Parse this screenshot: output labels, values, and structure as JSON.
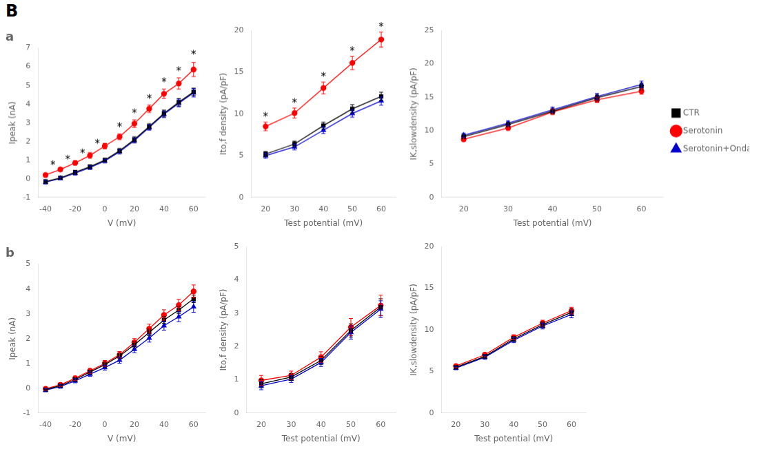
{
  "title": "B",
  "chart_data": [
    {
      "type": "line",
      "title": "a",
      "xlabel": "V (mV)",
      "ylabel": "Ipeak (nA)",
      "x": [
        -40,
        -30,
        -20,
        -10,
        0,
        10,
        20,
        30,
        40,
        50,
        60
      ],
      "series": [
        {
          "name": "CTR",
          "color": "#000000",
          "marker": "square",
          "values": [
            -0.15,
            0.05,
            0.35,
            0.65,
            1.0,
            1.5,
            2.1,
            2.8,
            3.5,
            4.1,
            4.65
          ],
          "errors": [
            0.1,
            0.08,
            0.1,
            0.1,
            0.1,
            0.12,
            0.15,
            0.15,
            0.18,
            0.2,
            0.2
          ]
        },
        {
          "name": "Serotonin",
          "color": "#ff0000",
          "marker": "circle",
          "values": [
            0.2,
            0.5,
            0.85,
            1.25,
            1.75,
            2.25,
            2.95,
            3.75,
            4.55,
            5.1,
            5.85
          ],
          "errors": [
            0.1,
            0.1,
            0.12,
            0.15,
            0.15,
            0.15,
            0.2,
            0.2,
            0.25,
            0.3,
            0.38
          ]
        },
        {
          "name": "Serotonin+Ondansetron",
          "color": "#0000cc",
          "marker": "triangle",
          "values": [
            -0.18,
            0.02,
            0.3,
            0.6,
            0.95,
            1.45,
            2.05,
            2.75,
            3.45,
            4.05,
            4.6
          ],
          "errors": [
            0.1,
            0.08,
            0.1,
            0.1,
            0.1,
            0.12,
            0.13,
            0.15,
            0.17,
            0.2,
            0.22
          ]
        }
      ],
      "xlim": [
        -45,
        68
      ],
      "ylim": [
        -1,
        7
      ],
      "xticks": [
        -40,
        -20,
        0,
        20,
        40,
        60
      ],
      "yticks": [
        -1,
        0,
        1,
        2,
        3,
        4,
        5,
        6,
        7
      ],
      "grid": false,
      "annotations": [
        {
          "text": "*",
          "x": -35,
          "y": 0.55
        },
        {
          "text": "*",
          "x": -25,
          "y": 0.85
        },
        {
          "text": "*",
          "x": -15,
          "y": 1.2
        },
        {
          "text": "*",
          "x": -5,
          "y": 1.7
        },
        {
          "text": "*",
          "x": 10,
          "y": 2.6
        },
        {
          "text": "*",
          "x": 20,
          "y": 3.35
        },
        {
          "text": "*",
          "x": 30,
          "y": 4.1
        },
        {
          "text": "*",
          "x": 40,
          "y": 5.0
        },
        {
          "text": "*",
          "x": 50,
          "y": 5.6
        },
        {
          "text": "*",
          "x": 60,
          "y": 6.5
        }
      ]
    },
    {
      "type": "line",
      "xlabel": "Test potential (mV)",
      "ylabel": "Ito,f density (pA/pF)",
      "x": [
        20,
        30,
        40,
        50,
        60
      ],
      "series": [
        {
          "name": "CTR",
          "color": "#000000",
          "marker": "square",
          "values": [
            5.2,
            6.4,
            8.6,
            10.6,
            12.1
          ],
          "errors": [
            0.3,
            0.35,
            0.4,
            0.5,
            0.5
          ]
        },
        {
          "name": "Serotonin",
          "color": "#ff0000",
          "marker": "circle",
          "values": [
            8.5,
            10.1,
            13.1,
            16.1,
            18.9
          ],
          "errors": [
            0.5,
            0.6,
            0.7,
            0.8,
            0.9
          ]
        },
        {
          "name": "Serotonin+Ondansetron",
          "color": "#0000cc",
          "marker": "triangle",
          "values": [
            5.0,
            6.05,
            8.05,
            10.05,
            11.55
          ],
          "errors": [
            0.3,
            0.35,
            0.4,
            0.45,
            0.5
          ]
        }
      ],
      "xlim": [
        15,
        65
      ],
      "ylim": [
        0,
        20
      ],
      "xticks": [
        20,
        30,
        40,
        50,
        60
      ],
      "yticks": [
        0,
        5,
        10,
        15,
        20
      ],
      "grid": false,
      "annotations": [
        {
          "text": "*",
          "x": 20,
          "y": 9.3
        },
        {
          "text": "*",
          "x": 30,
          "y": 10.95
        },
        {
          "text": "*",
          "x": 40,
          "y": 14.05
        },
        {
          "text": "*",
          "x": 50,
          "y": 17.15
        },
        {
          "text": "*",
          "x": 60,
          "y": 20.05
        }
      ]
    },
    {
      "type": "line",
      "xlabel": "Test potential (mV)",
      "ylabel": "IK,slowdensity (pA/pF)",
      "x": [
        20,
        30,
        40,
        50,
        60
      ],
      "series": [
        {
          "name": "CTR",
          "color": "#000000",
          "marker": "square",
          "values": [
            9.1,
            10.9,
            12.9,
            14.9,
            16.6
          ],
          "errors": [
            0.3,
            0.35,
            0.4,
            0.45,
            0.5
          ]
        },
        {
          "name": "Serotonin",
          "color": "#ff0000",
          "marker": "circle",
          "values": [
            8.7,
            10.4,
            12.8,
            14.6,
            15.9
          ],
          "errors": [
            0.3,
            0.35,
            0.4,
            0.4,
            0.45
          ]
        },
        {
          "name": "Serotonin+Ondansetron",
          "color": "#0000cc",
          "marker": "triangle",
          "values": [
            9.3,
            11.1,
            13.1,
            15.1,
            16.9
          ],
          "errors": [
            0.3,
            0.35,
            0.4,
            0.45,
            0.5
          ]
        }
      ],
      "xlim": [
        15,
        65
      ],
      "ylim": [
        0,
        25
      ],
      "xticks": [
        20,
        30,
        40,
        50,
        60
      ],
      "yticks": [
        0,
        5,
        10,
        15,
        20,
        25
      ],
      "grid": false,
      "legend": "right"
    },
    {
      "type": "line",
      "title": "b",
      "xlabel": "V (mV)",
      "ylabel": "Ipeak (nA)",
      "x": [
        -40,
        -30,
        -20,
        -10,
        0,
        10,
        20,
        30,
        40,
        50,
        60
      ],
      "series": [
        {
          "name": "CTR",
          "color": "#000000",
          "marker": "square",
          "values": [
            -0.05,
            0.1,
            0.35,
            0.65,
            0.95,
            1.3,
            1.75,
            2.25,
            2.75,
            3.15,
            3.6
          ],
          "errors": [
            0.05,
            0.06,
            0.07,
            0.08,
            0.1,
            0.1,
            0.12,
            0.13,
            0.14,
            0.15,
            0.15
          ]
        },
        {
          "name": "Serotonin",
          "color": "#ff0000",
          "marker": "circle",
          "values": [
            -0.02,
            0.14,
            0.4,
            0.7,
            1.0,
            1.35,
            1.85,
            2.4,
            2.95,
            3.35,
            3.9
          ],
          "errors": [
            0.06,
            0.07,
            0.09,
            0.1,
            0.12,
            0.13,
            0.15,
            0.18,
            0.21,
            0.23,
            0.26
          ]
        },
        {
          "name": "Serotonin+Ondansetron",
          "color": "#0000cc",
          "marker": "triangle",
          "values": [
            -0.08,
            0.07,
            0.3,
            0.57,
            0.83,
            1.13,
            1.57,
            2.02,
            2.52,
            2.88,
            3.28
          ],
          "errors": [
            0.06,
            0.07,
            0.08,
            0.09,
            0.1,
            0.12,
            0.14,
            0.16,
            0.18,
            0.2,
            0.22
          ]
        }
      ],
      "xlim": [
        -45,
        68
      ],
      "ylim": [
        -1,
        5
      ],
      "xticks": [
        -40,
        -20,
        0,
        20,
        40,
        60
      ],
      "yticks": [
        -1,
        0,
        1,
        2,
        3,
        4,
        5
      ],
      "grid": false
    },
    {
      "type": "line",
      "xlabel": "Test potential (mV)",
      "ylabel": "Ito,f density (pA/pF)",
      "x": [
        20,
        30,
        40,
        50,
        60
      ],
      "series": [
        {
          "name": "CTR",
          "color": "#000000",
          "marker": "square",
          "values": [
            0.88,
            1.08,
            1.58,
            2.48,
            3.18
          ],
          "errors": [
            0.12,
            0.1,
            0.12,
            0.2,
            0.25
          ]
        },
        {
          "name": "Serotonin",
          "color": "#ff0000",
          "marker": "circle",
          "values": [
            0.98,
            1.13,
            1.68,
            2.58,
            3.23
          ],
          "errors": [
            0.15,
            0.13,
            0.16,
            0.26,
            0.31
          ]
        },
        {
          "name": "Serotonin+Ondansetron",
          "color": "#0000cc",
          "marker": "triangle",
          "values": [
            0.82,
            1.02,
            1.52,
            2.42,
            3.12
          ],
          "errors": [
            0.12,
            0.1,
            0.12,
            0.2,
            0.25
          ]
        }
      ],
      "xlim": [
        15,
        65
      ],
      "ylim": [
        0,
        5
      ],
      "xticks": [
        20,
        30,
        40,
        50,
        60
      ],
      "yticks": [
        0,
        1,
        2,
        3,
        4,
        5
      ],
      "grid": false
    },
    {
      "type": "line",
      "xlabel": "Test potential (mV)",
      "ylabel": "IK,slowdensity (pA/pF)",
      "x": [
        20,
        30,
        40,
        50,
        60
      ],
      "series": [
        {
          "name": "CTR",
          "color": "#000000",
          "marker": "square",
          "values": [
            5.5,
            6.8,
            8.9,
            10.6,
            12.1
          ],
          "errors": [
            0.2,
            0.25,
            0.3,
            0.35,
            0.4
          ]
        },
        {
          "name": "Serotonin",
          "color": "#ff0000",
          "marker": "circle",
          "values": [
            5.65,
            7.0,
            9.1,
            10.8,
            12.3
          ],
          "errors": [
            0.2,
            0.25,
            0.3,
            0.35,
            0.4
          ]
        },
        {
          "name": "Serotonin+Ondansetron",
          "color": "#0000cc",
          "marker": "triangle",
          "values": [
            5.4,
            6.7,
            8.75,
            10.45,
            11.85
          ],
          "errors": [
            0.2,
            0.25,
            0.3,
            0.35,
            0.4
          ]
        }
      ],
      "xlim": [
        15,
        65
      ],
      "ylim": [
        0,
        20
      ],
      "xticks": [
        20,
        30,
        40,
        50,
        60
      ],
      "yticks": [
        0,
        5,
        10,
        15,
        20
      ],
      "grid": false
    }
  ]
}
